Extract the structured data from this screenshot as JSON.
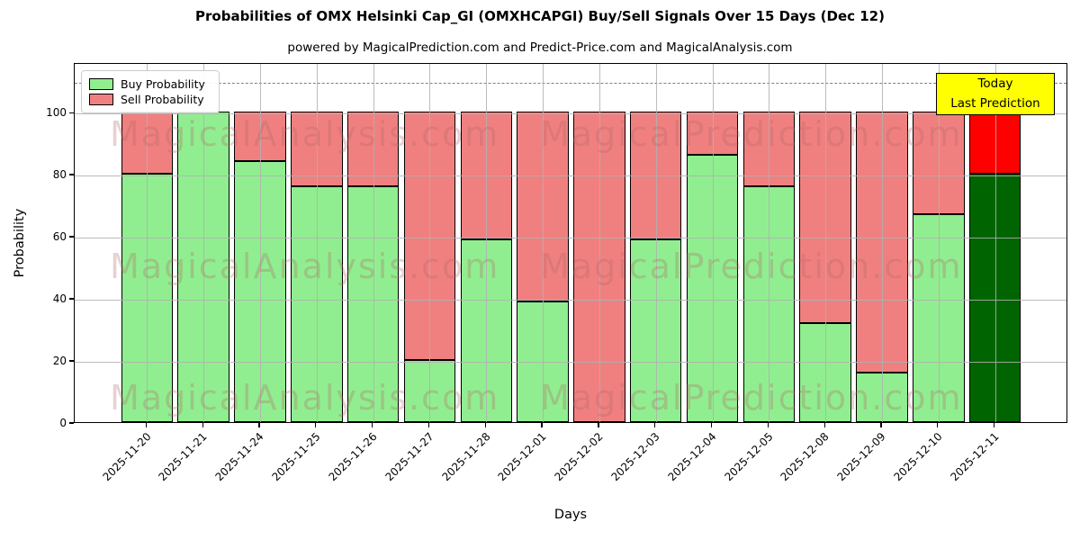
{
  "header": {
    "title": "Probabilities of OMX Helsinki Cap_GI (OMXHCAPGI) Buy/Sell Signals Over 15 Days (Dec 12)",
    "subtitle": "powered by MagicalPrediction.com and Predict-Price.com and MagicalAnalysis.com"
  },
  "legend": {
    "items": [
      {
        "label": "Buy Probability",
        "color": "#90EE90"
      },
      {
        "label": "Sell Probability",
        "color": "#F08080"
      }
    ]
  },
  "today_box": {
    "line1": "Today",
    "line2": "Last Prediction",
    "bg_color": "#FFFF00"
  },
  "axes": {
    "ylabel": "Probability",
    "xlabel": "Days",
    "yticks": [
      0,
      20,
      40,
      60,
      80,
      100
    ],
    "ymax": 116,
    "dashed_line_y": 110
  },
  "watermarks": {
    "texts": [
      "MagicalAnalysis.com",
      "MagicalPrediction.com"
    ],
    "color": "rgba(178,104,104,0.30)"
  },
  "chart_data": {
    "type": "bar",
    "stacked": true,
    "title": "Probabilities of OMX Helsinki Cap_GI (OMXHCAPGI) Buy/Sell Signals Over 15 Days (Dec 12)",
    "xlabel": "Days",
    "ylabel": "Probability",
    "ylim": [
      0,
      116
    ],
    "grid": true,
    "legend_position": "upper left",
    "dashed_threshold": 110,
    "categories": [
      "2025-11-20",
      "2025-11-21",
      "2025-11-24",
      "2025-11-25",
      "2025-11-26",
      "2025-11-27",
      "2025-11-28",
      "2025-12-01",
      "2025-12-02",
      "2025-12-03",
      "2025-12-04",
      "2025-12-05",
      "2025-12-08",
      "2025-12-09",
      "2025-12-10",
      "2025-12-11"
    ],
    "series": [
      {
        "name": "Buy Probability",
        "color": "#90EE90",
        "values": [
          80,
          100,
          84,
          76,
          76,
          20,
          59,
          39,
          0,
          59,
          86,
          76,
          32,
          16,
          67,
          80
        ]
      },
      {
        "name": "Sell Probability",
        "color": "#F08080",
        "values": [
          20,
          0,
          16,
          24,
          24,
          80,
          41,
          61,
          100,
          41,
          14,
          24,
          68,
          84,
          33,
          20
        ]
      }
    ],
    "today": {
      "category": "2025-12-11",
      "index": 15,
      "buy_color": "#006400",
      "sell_color": "#FF0000"
    }
  }
}
